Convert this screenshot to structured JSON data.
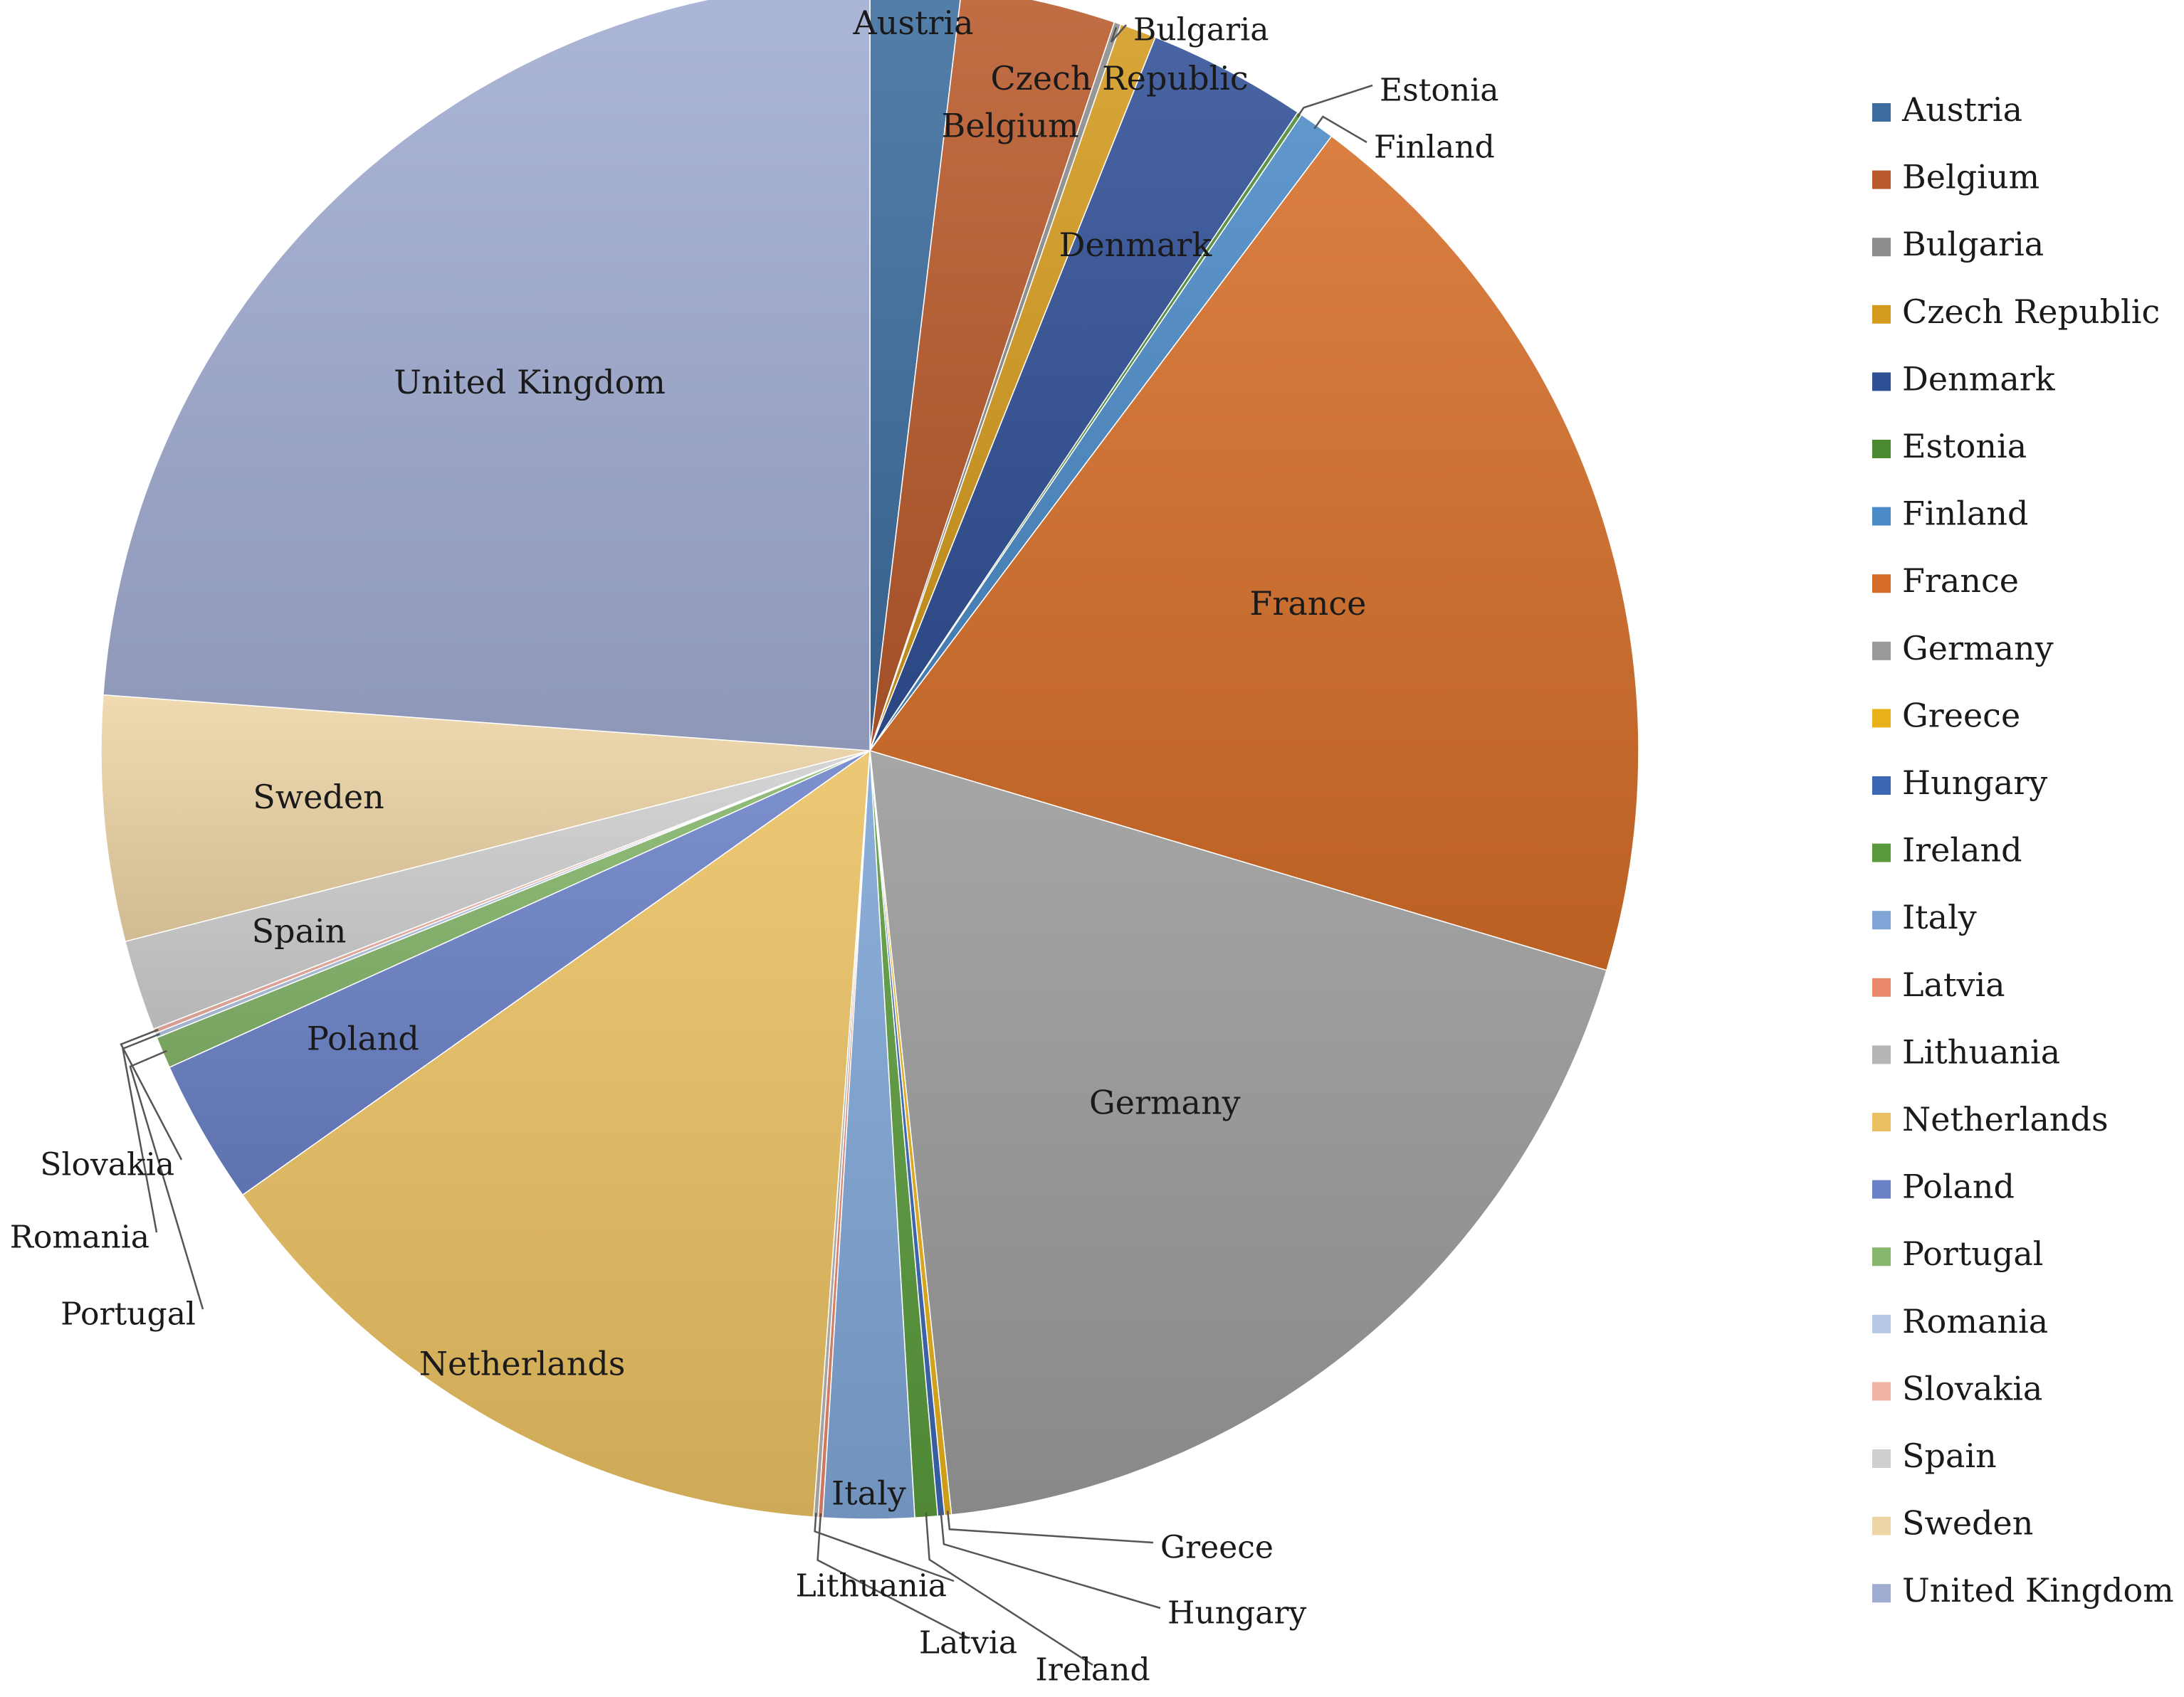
{
  "chart_data": {
    "type": "pie",
    "title": "",
    "legend_position": "right",
    "slices": [
      {
        "label": "Austria",
        "value": 2.0,
        "color": "#3d6d9e"
      },
      {
        "label": "Belgium",
        "value": 3.4,
        "color": "#b85a2c"
      },
      {
        "label": "Bulgaria",
        "value": 0.15,
        "color": "#8c8c8c"
      },
      {
        "label": "Czech Republic",
        "value": 0.8,
        "color": "#d39a1e"
      },
      {
        "label": "Denmark",
        "value": 3.5,
        "color": "#2f4f95"
      },
      {
        "label": "Estonia",
        "value": 0.1,
        "color": "#4c8a32"
      },
      {
        "label": "Finland",
        "value": 0.8,
        "color": "#4a8ac6"
      },
      {
        "label": "France",
        "value": 20.3,
        "color": "#d56d28"
      },
      {
        "label": "Germany",
        "value": 19.6,
        "color": "#9a9a9a"
      },
      {
        "label": "Greece",
        "value": 0.15,
        "color": "#e9b11a"
      },
      {
        "label": "Hungary",
        "value": 0.15,
        "color": "#3c67b4"
      },
      {
        "label": "Ireland",
        "value": 0.5,
        "color": "#5a9a3c"
      },
      {
        "label": "Italy",
        "value": 2.0,
        "color": "#7fa6d6"
      },
      {
        "label": "Latvia",
        "value": 0.1,
        "color": "#e8876a"
      },
      {
        "label": "Lithuania",
        "value": 0.1,
        "color": "#b5b5b5"
      },
      {
        "label": "Netherlands",
        "value": 14.7,
        "color": "#eac062"
      },
      {
        "label": "Poland",
        "value": 3.2,
        "color": "#6b82c8"
      },
      {
        "label": "Portugal",
        "value": 0.7,
        "color": "#86b76c"
      },
      {
        "label": "Romania",
        "value": 0.1,
        "color": "#b6c9e6"
      },
      {
        "label": "Slovakia",
        "value": 0.1,
        "color": "#f1b5a6"
      },
      {
        "label": "Spain",
        "value": 2.0,
        "color": "#cfcfcf"
      },
      {
        "label": "Sweden",
        "value": 5.4,
        "color": "#eed5a6"
      },
      {
        "label": "United Kingdom",
        "value": 25.0,
        "color": "#a1acd1"
      }
    ]
  }
}
